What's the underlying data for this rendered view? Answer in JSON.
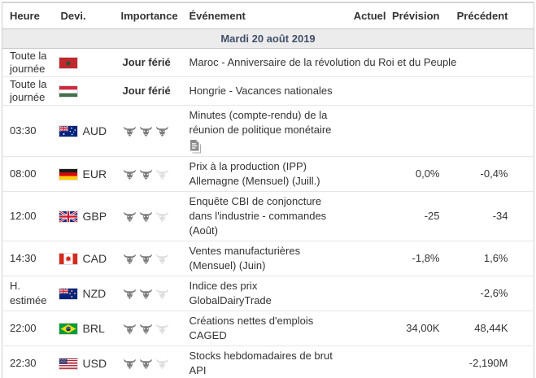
{
  "table": {
    "columns": [
      "Heure",
      "Devi.",
      "Importance",
      "Événement",
      "Actuel",
      "Prévision",
      "Précédent"
    ],
    "date_label": "Mardi 20 août 2019",
    "colors": {
      "bull_active": "#7d7d7d",
      "bull_inactive": "#dedede",
      "date_text": "#42506a",
      "date_bg": "#ececec",
      "row_border": "#e6e6e6"
    },
    "rows": [
      {
        "time": "Toute la journée",
        "flag": "morocco",
        "currency": "",
        "importance_label": "Jour férié",
        "importance": null,
        "event": "Maroc - Anniversaire de la révolution du Roi et du Peuple",
        "actual": "",
        "forecast": "",
        "previous": "",
        "has_report_icon": false
      },
      {
        "time": "Toute la journée",
        "flag": "hungary",
        "currency": "",
        "importance_label": "Jour férié",
        "importance": null,
        "event": "Hongrie - Vacances nationales",
        "actual": "",
        "forecast": "",
        "previous": "",
        "has_report_icon": false
      },
      {
        "time": "03:30",
        "flag": "australia",
        "currency": "AUD",
        "importance_label": "",
        "importance": 3,
        "event": "Minutes (compte-rendu) de la\nréunion de politique monétaire",
        "actual": "",
        "forecast": "",
        "previous": "",
        "has_report_icon": true
      },
      {
        "time": "08:00",
        "flag": "germany",
        "currency": "EUR",
        "importance_label": "",
        "importance": 2,
        "event": "Prix à la production (IPP)\nAllemagne (Mensuel) (Juill.)",
        "actual": "",
        "forecast": "0,0%",
        "previous": "-0,4%",
        "has_report_icon": false
      },
      {
        "time": "12:00",
        "flag": "uk",
        "currency": "GBP",
        "importance_label": "",
        "importance": 2,
        "event": "Enquête CBI de conjoncture\ndans l'industrie - commandes\n(Août)",
        "actual": "",
        "forecast": "-25",
        "previous": "-34",
        "has_report_icon": false
      },
      {
        "time": "14:30",
        "flag": "canada",
        "currency": "CAD",
        "importance_label": "",
        "importance": 2,
        "event": "Ventes manufacturières\n(Mensuel) (Juin)",
        "actual": "",
        "forecast": "-1,8%",
        "previous": "1,6%",
        "has_report_icon": false
      },
      {
        "time": "H. estimée",
        "flag": "new-zealand",
        "currency": "NZD",
        "importance_label": "",
        "importance": 2,
        "event": "Indice des prix\nGlobalDairyTrade",
        "actual": "",
        "forecast": "",
        "previous": "-2,6%",
        "has_report_icon": false
      },
      {
        "time": "22:00",
        "flag": "brazil",
        "currency": "BRL",
        "importance_label": "",
        "importance": 2,
        "event": "Créations nettes d'emplois\nCAGED",
        "actual": "",
        "forecast": "34,00K",
        "previous": "48,44K",
        "has_report_icon": false
      },
      {
        "time": "22:30",
        "flag": "usa",
        "currency": "USD",
        "importance_label": "",
        "importance": 2,
        "event": "Stocks hebdomadaires de brut\nAPI",
        "actual": "",
        "forecast": "",
        "previous": "-2,190M",
        "has_report_icon": false
      }
    ]
  }
}
